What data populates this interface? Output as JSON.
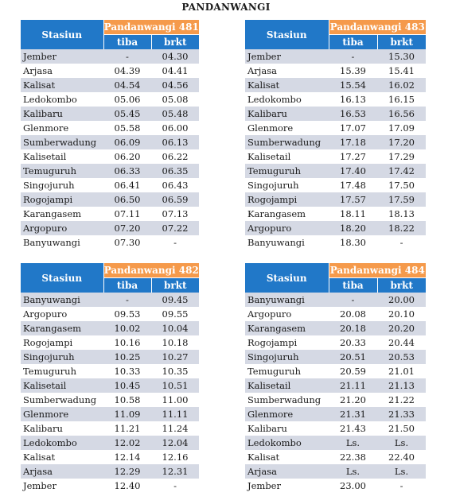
{
  "title": "PANDANWANGI",
  "headers": {
    "station": "Stasiun",
    "arrive": "tiba",
    "depart": "brkt"
  },
  "colors": {
    "header_blue": "#2178c8",
    "header_orange": "#f59a4b",
    "row_shade": "#d5d9e4"
  },
  "tables": [
    {
      "train": "Pandanwangi 481",
      "rows": [
        [
          "Jember",
          "-",
          "04.30"
        ],
        [
          "Arjasa",
          "04.39",
          "04.41"
        ],
        [
          "Kalisat",
          "04.54",
          "04.56"
        ],
        [
          "Ledokombo",
          "05.06",
          "05.08"
        ],
        [
          "Kalibaru",
          "05.45",
          "05.48"
        ],
        [
          "Glenmore",
          "05.58",
          "06.00"
        ],
        [
          "Sumberwadung",
          "06.09",
          "06.13"
        ],
        [
          "Kalisetail",
          "06.20",
          "06.22"
        ],
        [
          "Temuguruh",
          "06.33",
          "06.35"
        ],
        [
          "Singojuruh",
          "06.41",
          "06.43"
        ],
        [
          "Rogojampi",
          "06.50",
          "06.59"
        ],
        [
          "Karangasem",
          "07.11",
          "07.13"
        ],
        [
          "Argopuro",
          "07.20",
          "07.22"
        ],
        [
          "Banyuwangi",
          "07.30",
          "-"
        ]
      ]
    },
    {
      "train": "Pandanwangi 483",
      "rows": [
        [
          "Jember",
          "-",
          "15.30"
        ],
        [
          "Arjasa",
          "15.39",
          "15.41"
        ],
        [
          "Kalisat",
          "15.54",
          "16.02"
        ],
        [
          "Ledokombo",
          "16.13",
          "16.15"
        ],
        [
          "Kalibaru",
          "16.53",
          "16.56"
        ],
        [
          "Glenmore",
          "17.07",
          "17.09"
        ],
        [
          "Sumberwadung",
          "17.18",
          "17.20"
        ],
        [
          "Kalisetail",
          "17.27",
          "17.29"
        ],
        [
          "Temuguruh",
          "17.40",
          "17.42"
        ],
        [
          "Singojuruh",
          "17.48",
          "17.50"
        ],
        [
          "Rogojampi",
          "17.57",
          "17.59"
        ],
        [
          "Karangasem",
          "18.11",
          "18.13"
        ],
        [
          "Argopuro",
          "18.20",
          "18.22"
        ],
        [
          "Banyuwangi",
          "18.30",
          "-"
        ]
      ]
    },
    {
      "train": "Pandanwangi 482",
      "rows": [
        [
          "Banyuwangi",
          "-",
          "09.45"
        ],
        [
          "Argopuro",
          "09.53",
          "09.55"
        ],
        [
          "Karangasem",
          "10.02",
          "10.04"
        ],
        [
          "Rogojampi",
          "10.16",
          "10.18"
        ],
        [
          "Singojuruh",
          "10.25",
          "10.27"
        ],
        [
          "Temuguruh",
          "10.33",
          "10.35"
        ],
        [
          "Kalisetail",
          "10.45",
          "10.51"
        ],
        [
          "Sumberwadung",
          "10.58",
          "11.00"
        ],
        [
          "Glenmore",
          "11.09",
          "11.11"
        ],
        [
          "Kalibaru",
          "11.21",
          "11.24"
        ],
        [
          "Ledokombo",
          "12.02",
          "12.04"
        ],
        [
          "Kalisat",
          "12.14",
          "12.16"
        ],
        [
          "Arjasa",
          "12.29",
          "12.31"
        ],
        [
          "Jember",
          "12.40",
          "-"
        ]
      ]
    },
    {
      "train": "Pandanwangi 484",
      "rows": [
        [
          "Banyuwangi",
          "-",
          "20.00"
        ],
        [
          "Argopuro",
          "20.08",
          "20.10"
        ],
        [
          "Karangasem",
          "20.18",
          "20.20"
        ],
        [
          "Rogojampi",
          "20.33",
          "20.44"
        ],
        [
          "Singojuruh",
          "20.51",
          "20.53"
        ],
        [
          "Temuguruh",
          "20.59",
          "21.01"
        ],
        [
          "Kalisetail",
          "21.11",
          "21.13"
        ],
        [
          "Sumberwadung",
          "21.20",
          "21.22"
        ],
        [
          "Glenmore",
          "21.31",
          "21.33"
        ],
        [
          "Kalibaru",
          "21.43",
          "21.50"
        ],
        [
          "Ledokombo",
          "Ls.",
          "Ls."
        ],
        [
          "Kalisat",
          "22.38",
          "22.40"
        ],
        [
          "Arjasa",
          "Ls.",
          "Ls."
        ],
        [
          "Jember",
          "23.00",
          "-"
        ]
      ]
    }
  ]
}
